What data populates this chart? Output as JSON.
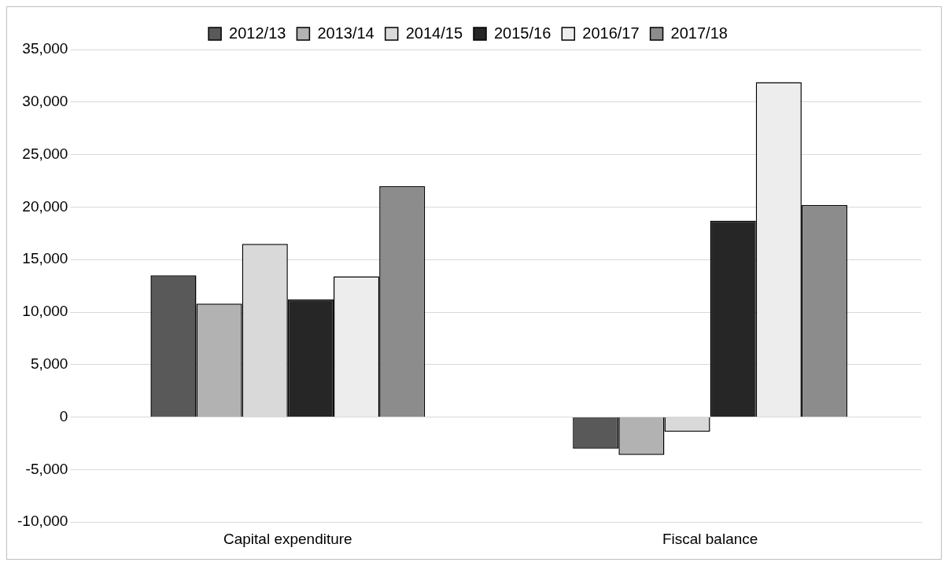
{
  "chart_data": {
    "type": "bar",
    "categories": [
      "Capital expenditure",
      "Fiscal balance"
    ],
    "series": [
      {
        "name": "2012/13",
        "color": "#595959",
        "values": [
          13500,
          -3000
        ]
      },
      {
        "name": "2013/14",
        "color": "#b2b2b2",
        "values": [
          10800,
          -3600
        ]
      },
      {
        "name": "2014/15",
        "color": "#d9d9d9",
        "values": [
          16500,
          -1400
        ]
      },
      {
        "name": "2015/16",
        "color": "#262626",
        "values": [
          11200,
          18700
        ]
      },
      {
        "name": "2016/17",
        "color": "#ededed",
        "values": [
          13400,
          31900
        ]
      },
      {
        "name": "2017/18",
        "color": "#8c8c8c",
        "values": [
          22000,
          20200
        ]
      }
    ],
    "ylim": [
      -10000,
      35000
    ],
    "yticks": [
      {
        "value": -10000,
        "label": "-10,000"
      },
      {
        "value": -5000,
        "label": "-5,000"
      },
      0,
      {
        "value": 5000,
        "label": "5,000"
      },
      {
        "value": 10000,
        "label": "10,000"
      },
      {
        "value": 15000,
        "label": "15,000"
      },
      {
        "value": 20000,
        "label": "20,000"
      },
      {
        "value": 25000,
        "label": "25,000"
      },
      {
        "value": 30000,
        "label": "30,000"
      },
      {
        "value": 35000,
        "label": "35,000"
      }
    ],
    "grid": "y",
    "legend": "top"
  }
}
